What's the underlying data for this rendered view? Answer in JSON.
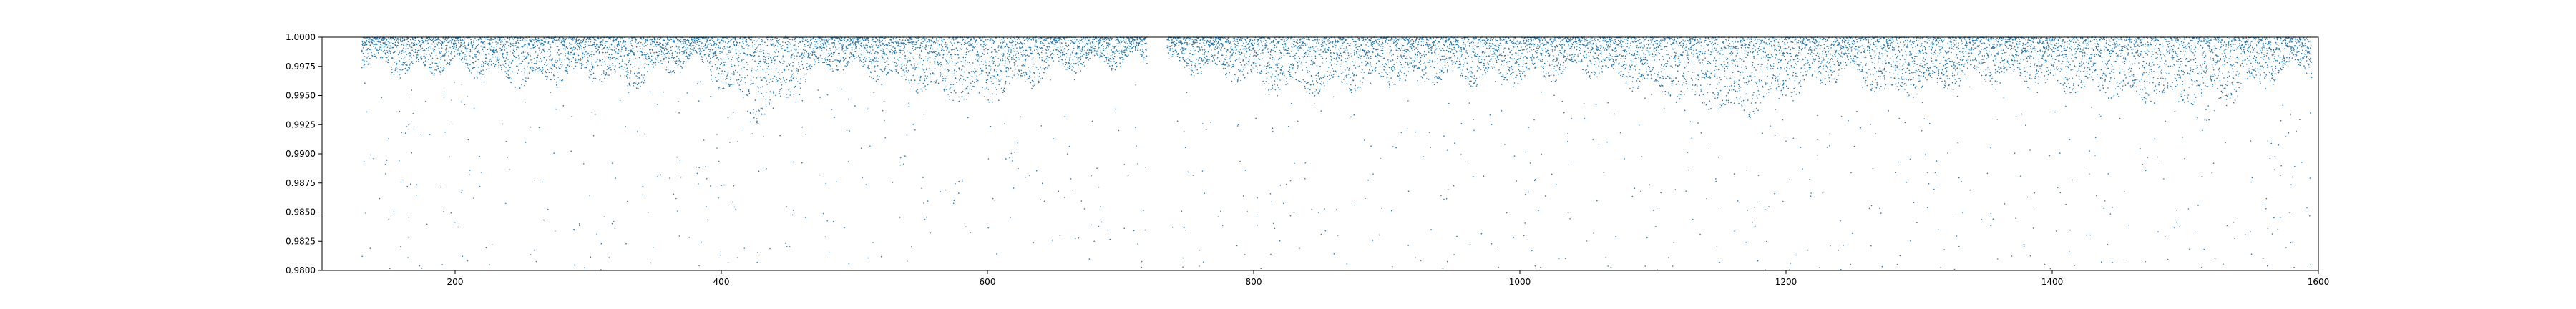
{
  "chart_data": {
    "type": "scatter",
    "title": "",
    "xlabel": "",
    "ylabel": "",
    "xlim": [
      100,
      1600
    ],
    "ylim": [
      0.98,
      1.0
    ],
    "x_ticks": [
      200,
      400,
      600,
      800,
      1000,
      1200,
      1400,
      1600
    ],
    "x_tick_labels": [
      "200",
      "400",
      "600",
      "800",
      "1000",
      "1200",
      "1400",
      "1600"
    ],
    "y_ticks": [
      0.98,
      0.9825,
      0.985,
      0.9875,
      0.99,
      0.9925,
      0.995,
      0.9975,
      1.0
    ],
    "y_tick_labels": [
      "0.9800",
      "0.9825",
      "0.9850",
      "0.9875",
      "0.9900",
      "0.9925",
      "0.9950",
      "0.9975",
      "1.0000"
    ],
    "grid": false,
    "marker_color": "#1f77b4",
    "data_x_range": [
      130,
      1595
    ],
    "data_gap": [
      720,
      735
    ],
    "series": [
      {
        "values_description_points": [
          {
            "x": 130,
            "y": 0.9985
          },
          {
            "x": 160,
            "y": 0.9978
          },
          {
            "x": 200,
            "y": 0.9982
          },
          {
            "x": 255,
            "y": 0.9968
          },
          {
            "x": 300,
            "y": 0.9975
          },
          {
            "x": 330,
            "y": 0.9966
          },
          {
            "x": 380,
            "y": 0.9988
          },
          {
            "x": 420,
            "y": 0.9948
          },
          {
            "x": 430,
            "y": 0.9937
          },
          {
            "x": 480,
            "y": 0.9985
          },
          {
            "x": 510,
            "y": 0.9978
          },
          {
            "x": 590,
            "y": 0.995
          },
          {
            "x": 650,
            "y": 0.998
          },
          {
            "x": 710,
            "y": 0.9988
          },
          {
            "x": 760,
            "y": 0.998
          },
          {
            "x": 830,
            "y": 0.9962
          },
          {
            "x": 900,
            "y": 0.997
          },
          {
            "x": 1000,
            "y": 0.9972
          },
          {
            "x": 1050,
            "y": 0.998
          },
          {
            "x": 1170,
            "y": 0.994
          },
          {
            "x": 1180,
            "y": 0.995
          },
          {
            "x": 1250,
            "y": 0.9978
          },
          {
            "x": 1280,
            "y": 0.9958
          },
          {
            "x": 1350,
            "y": 0.9975
          },
          {
            "x": 1460,
            "y": 0.9957
          },
          {
            "x": 1530,
            "y": 0.9953
          },
          {
            "x": 1590,
            "y": 0.9985
          }
        ]
      }
    ]
  }
}
